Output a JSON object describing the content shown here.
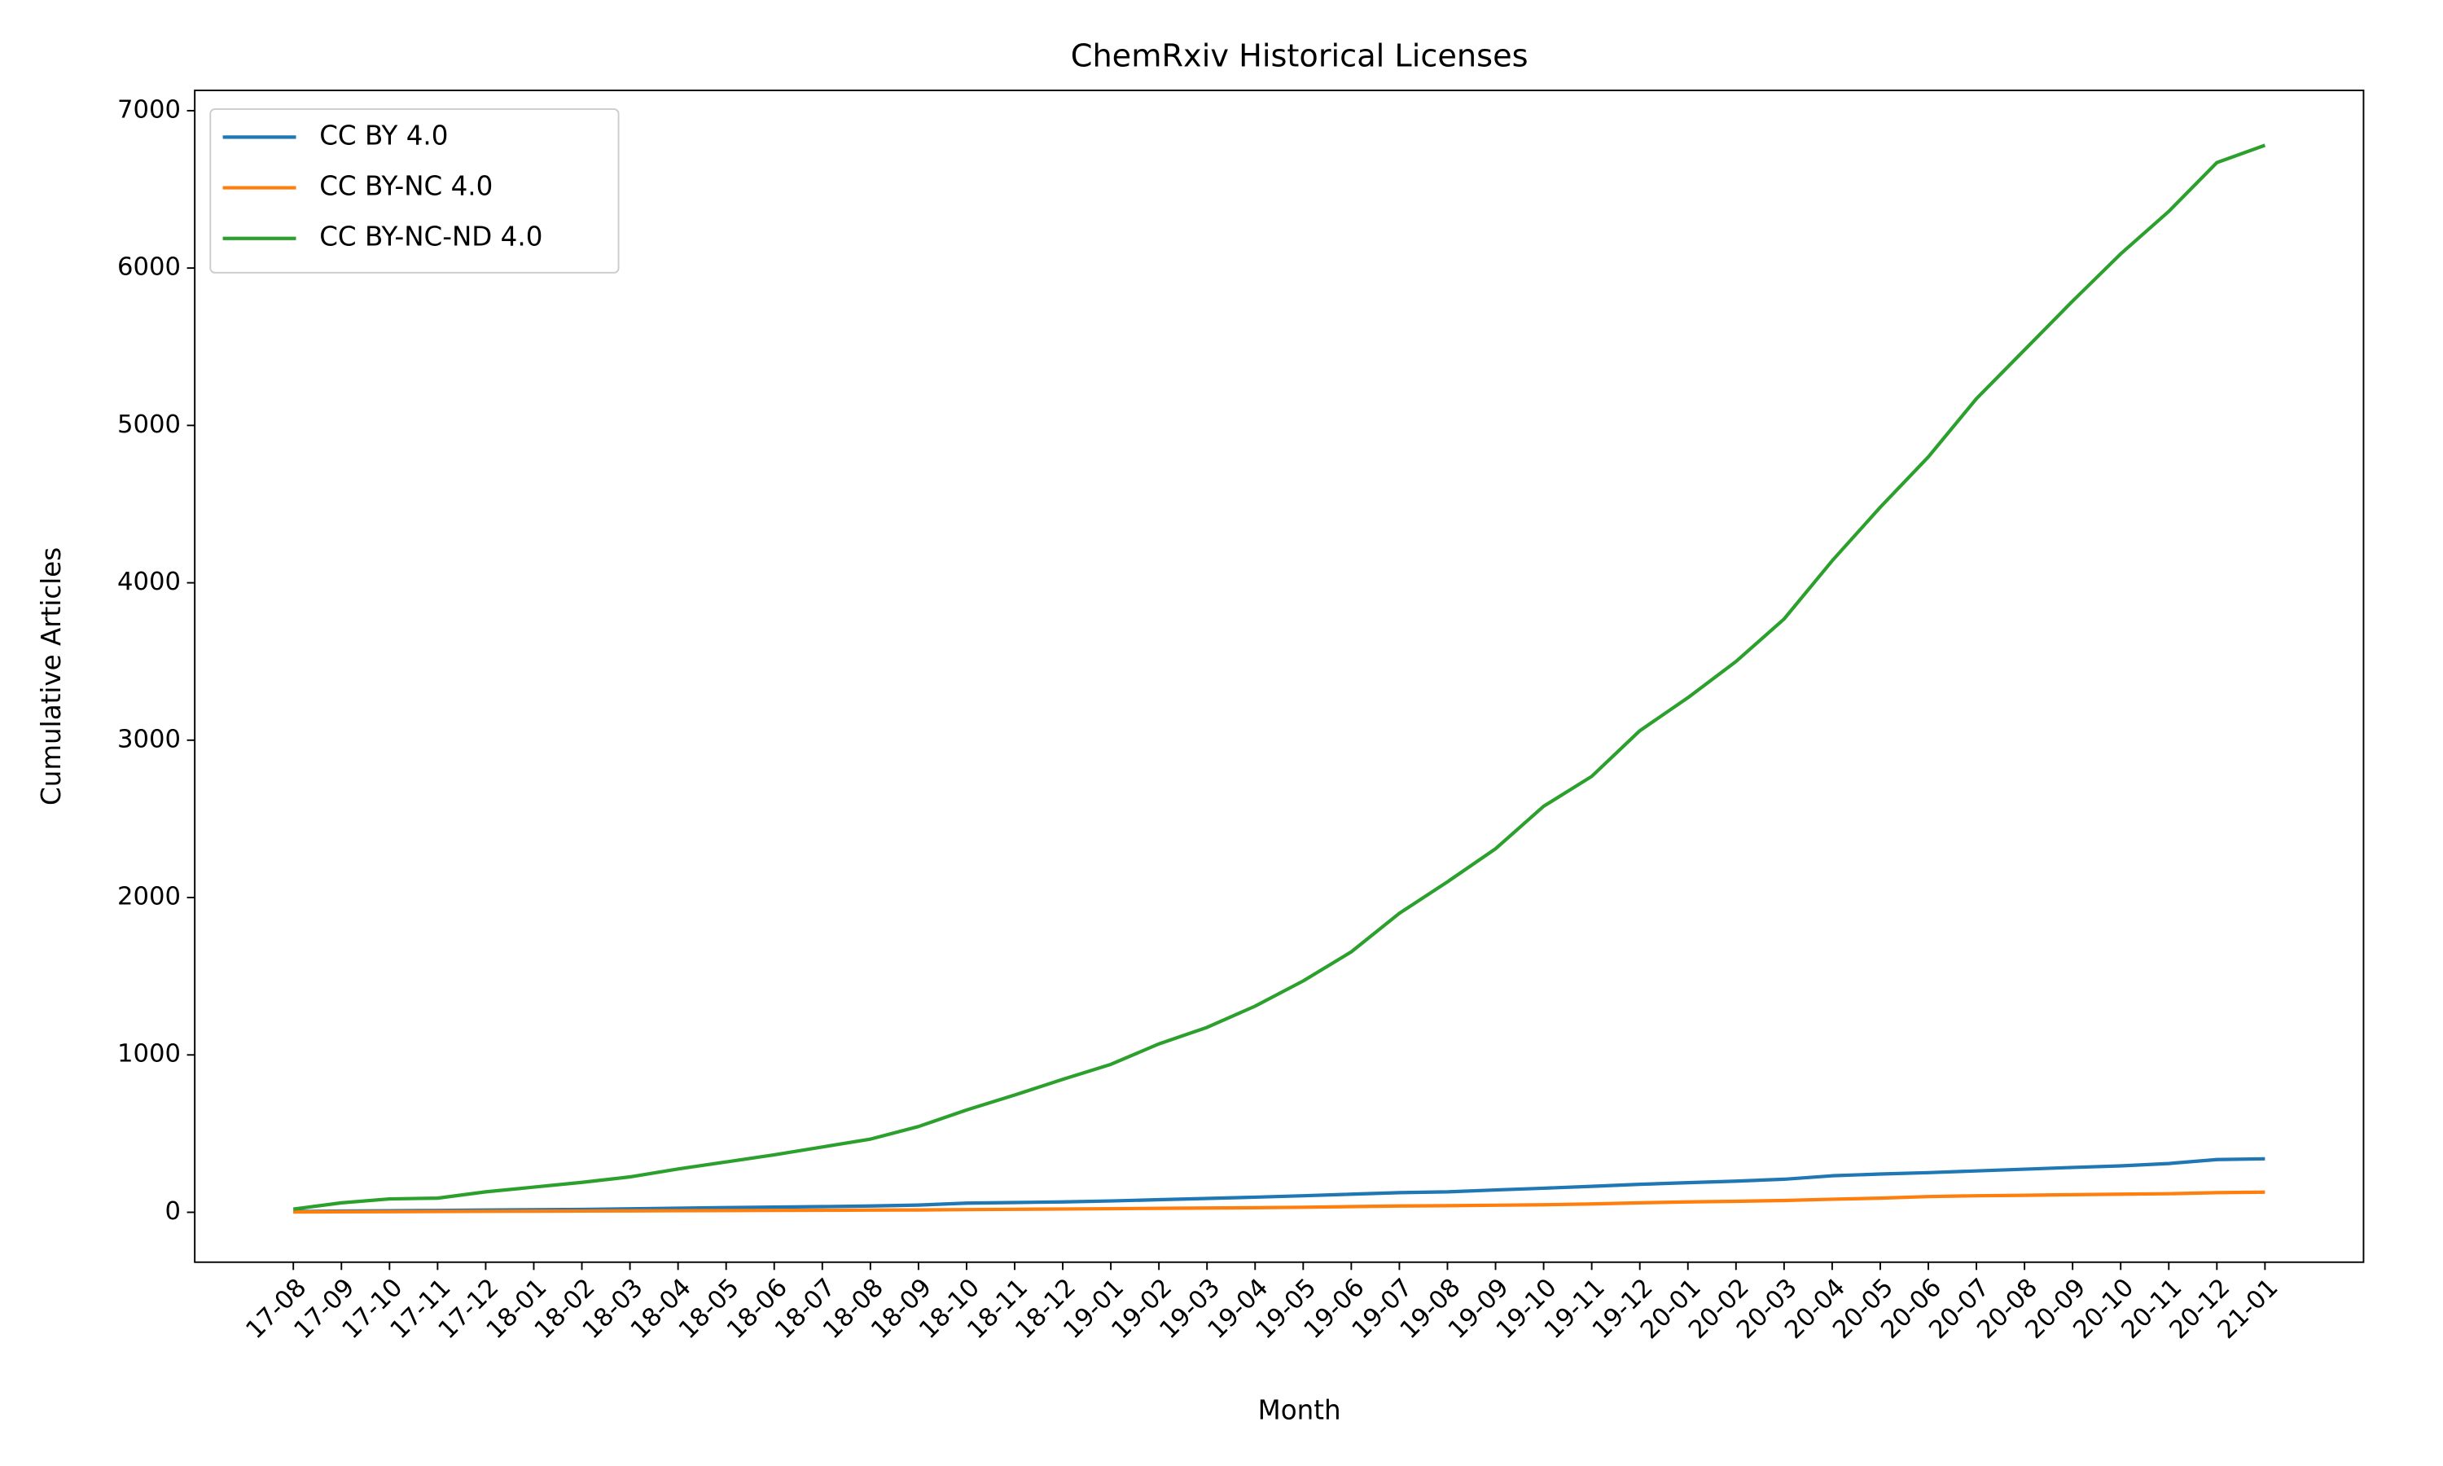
{
  "chart_data": {
    "type": "line",
    "title": "ChemRxiv Historical Licenses",
    "x_label": "Month",
    "y_label": "Cumulative Articles",
    "categories": [
      "17-08",
      "17-09",
      "17-10",
      "17-11",
      "17-12",
      "18-01",
      "18-02",
      "18-03",
      "18-04",
      "18-05",
      "18-06",
      "18-07",
      "18-08",
      "18-09",
      "18-10",
      "18-11",
      "18-12",
      "19-01",
      "19-02",
      "19-03",
      "19-04",
      "19-05",
      "19-06",
      "19-07",
      "19-08",
      "19-09",
      "19-10",
      "19-11",
      "19-12",
      "20-01",
      "20-02",
      "20-03",
      "20-04",
      "20-05",
      "20-06",
      "20-07",
      "20-08",
      "20-09",
      "20-10",
      "20-11",
      "20-12",
      "21-01"
    ],
    "series": [
      {
        "name": "CC BY 4.0",
        "color": "#1f77b4",
        "values": [
          5,
          8,
          10,
          12,
          14,
          16,
          18,
          22,
          26,
          30,
          33,
          36,
          40,
          46,
          58,
          62,
          66,
          72,
          80,
          88,
          96,
          105,
          115,
          125,
          130,
          142,
          153,
          165,
          178,
          188,
          198,
          210,
          232,
          243,
          252,
          263,
          274,
          285,
          295,
          310,
          335,
          340
        ]
      },
      {
        "name": "CC BY-NC 4.0",
        "color": "#ff7f0e",
        "values": [
          2,
          3,
          4,
          5,
          6,
          7,
          8,
          9,
          10,
          11,
          12,
          13,
          14,
          15,
          17,
          19,
          21,
          23,
          25,
          27,
          29,
          32,
          36,
          40,
          42,
          45,
          48,
          53,
          60,
          66,
          70,
          75,
          83,
          90,
          100,
          105,
          108,
          112,
          115,
          118,
          125,
          128
        ]
      },
      {
        "name": "CC BY-NC-ND 4.0",
        "color": "#2ca02c",
        "values": [
          20,
          60,
          85,
          90,
          130,
          160,
          190,
          225,
          275,
          320,
          365,
          415,
          465,
          545,
          650,
          745,
          845,
          940,
          1070,
          1175,
          1310,
          1470,
          1655,
          1900,
          2100,
          2310,
          2580,
          2770,
          3060,
          3270,
          3500,
          3770,
          4140,
          4480,
          4800,
          5170,
          5480,
          5790,
          6090,
          6360,
          6670,
          6780
        ]
      }
    ],
    "ylim": [
      -317,
      7129
    ],
    "yticks": [
      0,
      1000,
      2000,
      3000,
      4000,
      5000,
      6000,
      7000
    ],
    "legend": "upper left"
  }
}
